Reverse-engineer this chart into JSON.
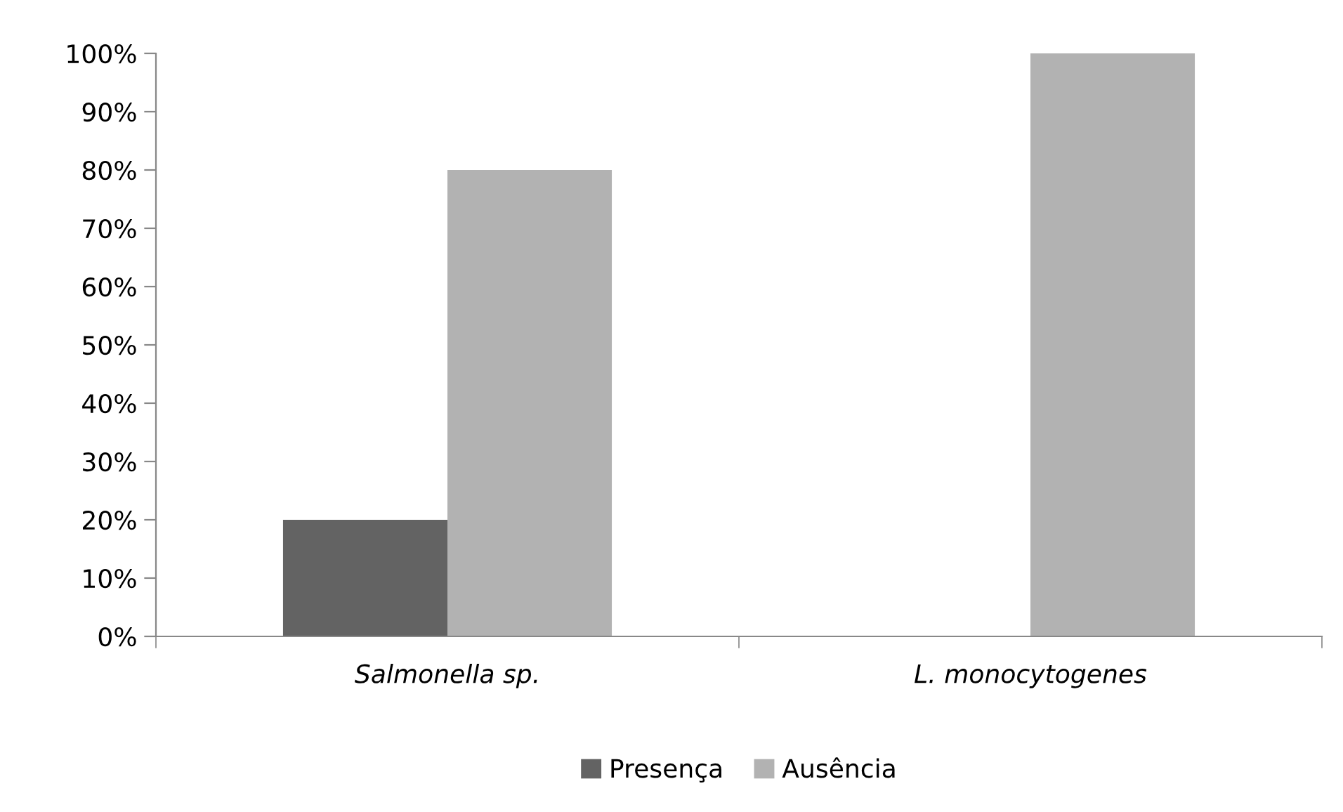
{
  "chart_data": {
    "type": "bar",
    "categories": [
      "Salmonella sp.",
      "L. monocytogenes"
    ],
    "series": [
      {
        "name": "Presença",
        "color": "#636363",
        "values": [
          20,
          0
        ]
      },
      {
        "name": "Ausência",
        "color": "#b2b2b2",
        "values": [
          80,
          100
        ]
      }
    ],
    "ylim": [
      0,
      100
    ],
    "yticks": [
      {
        "value": 0,
        "label": "0%"
      },
      {
        "value": 10,
        "label": "10%"
      },
      {
        "value": 20,
        "label": "20%"
      },
      {
        "value": 30,
        "label": "30%"
      },
      {
        "value": 40,
        "label": "40%"
      },
      {
        "value": 50,
        "label": "50%"
      },
      {
        "value": 60,
        "label": "60%"
      },
      {
        "value": 70,
        "label": "70%"
      },
      {
        "value": 80,
        "label": "80%"
      },
      {
        "value": 90,
        "label": "90%"
      },
      {
        "value": 100,
        "label": "100%"
      }
    ],
    "grid": false,
    "legend": "bottom"
  }
}
